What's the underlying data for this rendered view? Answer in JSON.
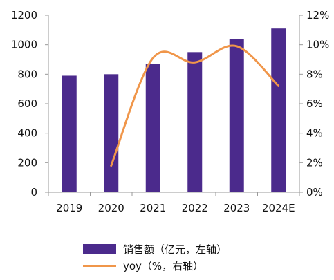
{
  "colors": {
    "bar": "#4b2a8c",
    "line": "#f0964a",
    "axis": "#9a9a9a"
  },
  "chart_data": {
    "type": "bar",
    "categories": [
      "2019",
      "2020",
      "2021",
      "2022",
      "2023",
      "2024E"
    ],
    "series": [
      {
        "name": "销售额（亿元，左轴）",
        "type": "bar",
        "axis": "left",
        "values": [
          790,
          800,
          870,
          950,
          1040,
          1110
        ]
      },
      {
        "name": "yoy（%，右轴）",
        "type": "line",
        "axis": "right",
        "values": [
          null,
          1.8,
          9.1,
          8.8,
          9.9,
          7.2
        ]
      }
    ],
    "y_left": {
      "ylim": [
        0,
        1200
      ],
      "ticks": [
        "0",
        "200",
        "400",
        "600",
        "800",
        "1000",
        "1200"
      ]
    },
    "y_right": {
      "ylim": [
        0,
        12
      ],
      "ticks": [
        "0%",
        "2%",
        "4%",
        "6%",
        "8%",
        "10%",
        "12%"
      ]
    },
    "legend_position": "bottom",
    "grid": false
  }
}
